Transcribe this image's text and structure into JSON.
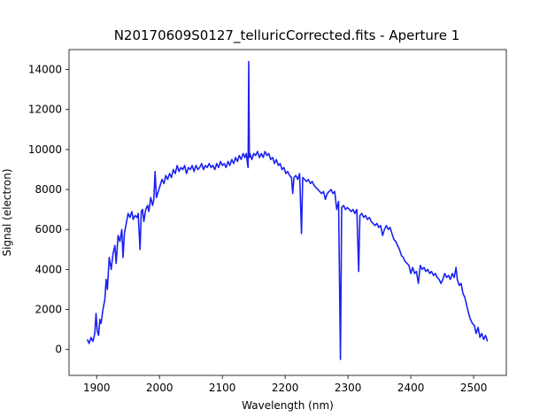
{
  "chart_data": {
    "type": "line",
    "title": "N20170609S0127_telluricCorrected.fits - Aperture 1",
    "xlabel": "Wavelength (nm)",
    "ylabel": "Signal (electron)",
    "xlim": [
      1856,
      2552
    ],
    "ylim": [
      -1300,
      15000
    ],
    "xticks": [
      1900,
      2000,
      2100,
      2200,
      2300,
      2400,
      2500
    ],
    "yticks": [
      0,
      2000,
      4000,
      6000,
      8000,
      10000,
      12000,
      14000
    ],
    "grid": false,
    "line_color": "#1a22f0",
    "series": [
      {
        "points": [
          [
            1885,
            500
          ],
          [
            1888,
            300
          ],
          [
            1891,
            600
          ],
          [
            1894,
            400
          ],
          [
            1897,
            800
          ],
          [
            1899,
            1800
          ],
          [
            1901,
            900
          ],
          [
            1903,
            700
          ],
          [
            1905,
            1500
          ],
          [
            1907,
            1300
          ],
          [
            1910,
            2000
          ],
          [
            1913,
            2500
          ],
          [
            1915,
            3500
          ],
          [
            1917,
            3000
          ],
          [
            1920,
            4600
          ],
          [
            1923,
            4000
          ],
          [
            1926,
            4800
          ],
          [
            1929,
            5200
          ],
          [
            1931,
            4300
          ],
          [
            1934,
            5700
          ],
          [
            1937,
            5400
          ],
          [
            1940,
            6000
          ],
          [
            1942,
            4600
          ],
          [
            1944,
            5800
          ],
          [
            1947,
            6300
          ],
          [
            1950,
            6800
          ],
          [
            1953,
            6600
          ],
          [
            1956,
            6900
          ],
          [
            1958,
            6500
          ],
          [
            1961,
            6700
          ],
          [
            1964,
            6600
          ],
          [
            1966,
            6800
          ],
          [
            1969,
            5000
          ],
          [
            1971,
            6900
          ],
          [
            1973,
            7000
          ],
          [
            1975,
            6400
          ],
          [
            1978,
            7000
          ],
          [
            1981,
            7200
          ],
          [
            1983,
            6900
          ],
          [
            1986,
            7600
          ],
          [
            1989,
            7200
          ],
          [
            1991,
            7500
          ],
          [
            1993,
            8900
          ],
          [
            1995,
            7600
          ],
          [
            1998,
            7900
          ],
          [
            2001,
            8200
          ],
          [
            2004,
            8500
          ],
          [
            2007,
            8300
          ],
          [
            2010,
            8700
          ],
          [
            2013,
            8500
          ],
          [
            2016,
            8800
          ],
          [
            2019,
            8600
          ],
          [
            2022,
            9000
          ],
          [
            2025,
            8800
          ],
          [
            2028,
            9200
          ],
          [
            2031,
            8900
          ],
          [
            2034,
            9100
          ],
          [
            2037,
            9000
          ],
          [
            2040,
            9200
          ],
          [
            2043,
            8800
          ],
          [
            2046,
            9100
          ],
          [
            2049,
            9000
          ],
          [
            2052,
            9200
          ],
          [
            2055,
            8900
          ],
          [
            2058,
            9200
          ],
          [
            2061,
            9000
          ],
          [
            2064,
            9100
          ],
          [
            2067,
            9300
          ],
          [
            2070,
            9000
          ],
          [
            2073,
            9200
          ],
          [
            2076,
            9100
          ],
          [
            2079,
            9300
          ],
          [
            2082,
            9100
          ],
          [
            2085,
            9200
          ],
          [
            2088,
            9000
          ],
          [
            2091,
            9300
          ],
          [
            2094,
            9100
          ],
          [
            2097,
            9400
          ],
          [
            2100,
            9200
          ],
          [
            2103,
            9300
          ],
          [
            2106,
            9100
          ],
          [
            2109,
            9400
          ],
          [
            2112,
            9200
          ],
          [
            2115,
            9500
          ],
          [
            2118,
            9300
          ],
          [
            2121,
            9600
          ],
          [
            2124,
            9400
          ],
          [
            2127,
            9700
          ],
          [
            2130,
            9500
          ],
          [
            2133,
            9800
          ],
          [
            2136,
            9600
          ],
          [
            2138,
            9800
          ],
          [
            2140,
            9300
          ],
          [
            2141,
            9100
          ],
          [
            2142,
            14400
          ],
          [
            2143,
            9600
          ],
          [
            2144,
            9800
          ],
          [
            2147,
            9500
          ],
          [
            2150,
            9800
          ],
          [
            2153,
            9700
          ],
          [
            2156,
            9900
          ],
          [
            2159,
            9600
          ],
          [
            2162,
            9800
          ],
          [
            2165,
            9600
          ],
          [
            2168,
            9900
          ],
          [
            2171,
            9700
          ],
          [
            2174,
            9800
          ],
          [
            2177,
            9500
          ],
          [
            2180,
            9600
          ],
          [
            2183,
            9300
          ],
          [
            2186,
            9500
          ],
          [
            2189,
            9200
          ],
          [
            2192,
            9300
          ],
          [
            2195,
            9000
          ],
          [
            2198,
            9100
          ],
          [
            2201,
            8800
          ],
          [
            2204,
            8900
          ],
          [
            2207,
            8700
          ],
          [
            2210,
            8600
          ],
          [
            2212,
            7800
          ],
          [
            2214,
            8600
          ],
          [
            2217,
            8700
          ],
          [
            2220,
            8500
          ],
          [
            2223,
            8800
          ],
          [
            2226,
            5800
          ],
          [
            2228,
            8600
          ],
          [
            2231,
            8500
          ],
          [
            2234,
            8400
          ],
          [
            2237,
            8500
          ],
          [
            2240,
            8300
          ],
          [
            2243,
            8400
          ],
          [
            2246,
            8200
          ],
          [
            2249,
            8100
          ],
          [
            2252,
            8000
          ],
          [
            2255,
            7900
          ],
          [
            2258,
            7800
          ],
          [
            2261,
            7900
          ],
          [
            2264,
            7500
          ],
          [
            2267,
            7800
          ],
          [
            2270,
            7900
          ],
          [
            2273,
            8000
          ],
          [
            2276,
            7800
          ],
          [
            2279,
            7900
          ],
          [
            2282,
            7000
          ],
          [
            2285,
            7400
          ],
          [
            2288,
            -500
          ],
          [
            2290,
            7100
          ],
          [
            2293,
            7200
          ],
          [
            2296,
            7000
          ],
          [
            2299,
            7100
          ],
          [
            2302,
            7000
          ],
          [
            2305,
            6900
          ],
          [
            2308,
            7000
          ],
          [
            2311,
            6800
          ],
          [
            2314,
            7000
          ],
          [
            2317,
            3900
          ],
          [
            2319,
            6700
          ],
          [
            2322,
            6800
          ],
          [
            2325,
            6600
          ],
          [
            2328,
            6700
          ],
          [
            2331,
            6500
          ],
          [
            2334,
            6600
          ],
          [
            2337,
            6400
          ],
          [
            2340,
            6300
          ],
          [
            2343,
            6200
          ],
          [
            2346,
            6300
          ],
          [
            2349,
            6100
          ],
          [
            2352,
            6200
          ],
          [
            2355,
            5700
          ],
          [
            2358,
            6000
          ],
          [
            2361,
            6200
          ],
          [
            2364,
            6000
          ],
          [
            2367,
            6100
          ],
          [
            2370,
            5800
          ],
          [
            2373,
            5500
          ],
          [
            2376,
            5400
          ],
          [
            2379,
            5200
          ],
          [
            2382,
            5000
          ],
          [
            2385,
            4700
          ],
          [
            2388,
            4600
          ],
          [
            2391,
            4400
          ],
          [
            2394,
            4300
          ],
          [
            2397,
            4200
          ],
          [
            2400,
            3800
          ],
          [
            2403,
            4100
          ],
          [
            2406,
            3800
          ],
          [
            2409,
            3900
          ],
          [
            2412,
            3300
          ],
          [
            2415,
            4200
          ],
          [
            2418,
            4000
          ],
          [
            2421,
            4100
          ],
          [
            2424,
            3900
          ],
          [
            2427,
            4000
          ],
          [
            2430,
            3800
          ],
          [
            2433,
            3900
          ],
          [
            2436,
            3700
          ],
          [
            2439,
            3800
          ],
          [
            2442,
            3600
          ],
          [
            2445,
            3500
          ],
          [
            2448,
            3300
          ],
          [
            2451,
            3500
          ],
          [
            2454,
            3800
          ],
          [
            2457,
            3600
          ],
          [
            2460,
            3700
          ],
          [
            2463,
            3500
          ],
          [
            2466,
            3800
          ],
          [
            2469,
            3600
          ],
          [
            2472,
            4100
          ],
          [
            2474,
            3500
          ],
          [
            2477,
            3200
          ],
          [
            2480,
            3300
          ],
          [
            2483,
            2800
          ],
          [
            2486,
            2600
          ],
          [
            2489,
            2200
          ],
          [
            2492,
            1800
          ],
          [
            2495,
            1500
          ],
          [
            2498,
            1300
          ],
          [
            2501,
            1200
          ],
          [
            2504,
            800
          ],
          [
            2507,
            1100
          ],
          [
            2510,
            600
          ],
          [
            2513,
            800
          ],
          [
            2516,
            500
          ],
          [
            2519,
            700
          ],
          [
            2522,
            400
          ]
        ]
      }
    ]
  }
}
